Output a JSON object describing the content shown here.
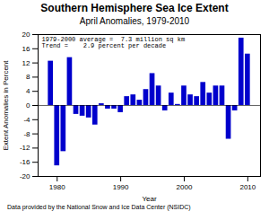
{
  "chart_data": {
    "type": "bar",
    "title": "Southern Hemisphere Sea Ice Extent",
    "subtitle": "April Anomalies, 1979-2010",
    "xlabel": "Year",
    "ylabel": "Extent Anomalies in Percent",
    "annotations": [
      "1979-2000 average =  7.3 million sq km",
      "Trend =    2.9 percent per decade"
    ],
    "caption": "Data provided by the National Snow and Ice Data Center (NSIDC)",
    "x": [
      1979,
      1980,
      1981,
      1982,
      1983,
      1984,
      1985,
      1986,
      1987,
      1988,
      1989,
      1990,
      1991,
      1992,
      1993,
      1994,
      1995,
      1996,
      1997,
      1998,
      1999,
      2000,
      2001,
      2002,
      2003,
      2004,
      2005,
      2006,
      2007,
      2008,
      2009,
      2010
    ],
    "values": [
      12.5,
      -17.0,
      -13.0,
      13.5,
      -2.5,
      -3.0,
      -3.5,
      -5.5,
      0.5,
      -1.0,
      -1.0,
      -2.0,
      2.5,
      3.0,
      1.5,
      4.5,
      9.0,
      5.5,
      -1.5,
      3.5,
      0.3,
      5.5,
      3.0,
      2.5,
      6.5,
      3.5,
      5.5,
      5.5,
      -9.5,
      -1.5,
      19.0,
      14.5
    ],
    "color": "#0000CC",
    "xlim": [
      1977,
      2012
    ],
    "xticks": [
      1980,
      1990,
      2000,
      2010
    ],
    "ylim": [
      -20,
      20
    ],
    "yticks": [
      -20,
      -16,
      -12,
      -8,
      -4,
      0,
      4,
      8,
      12,
      16,
      20
    ],
    "grid": false
  }
}
